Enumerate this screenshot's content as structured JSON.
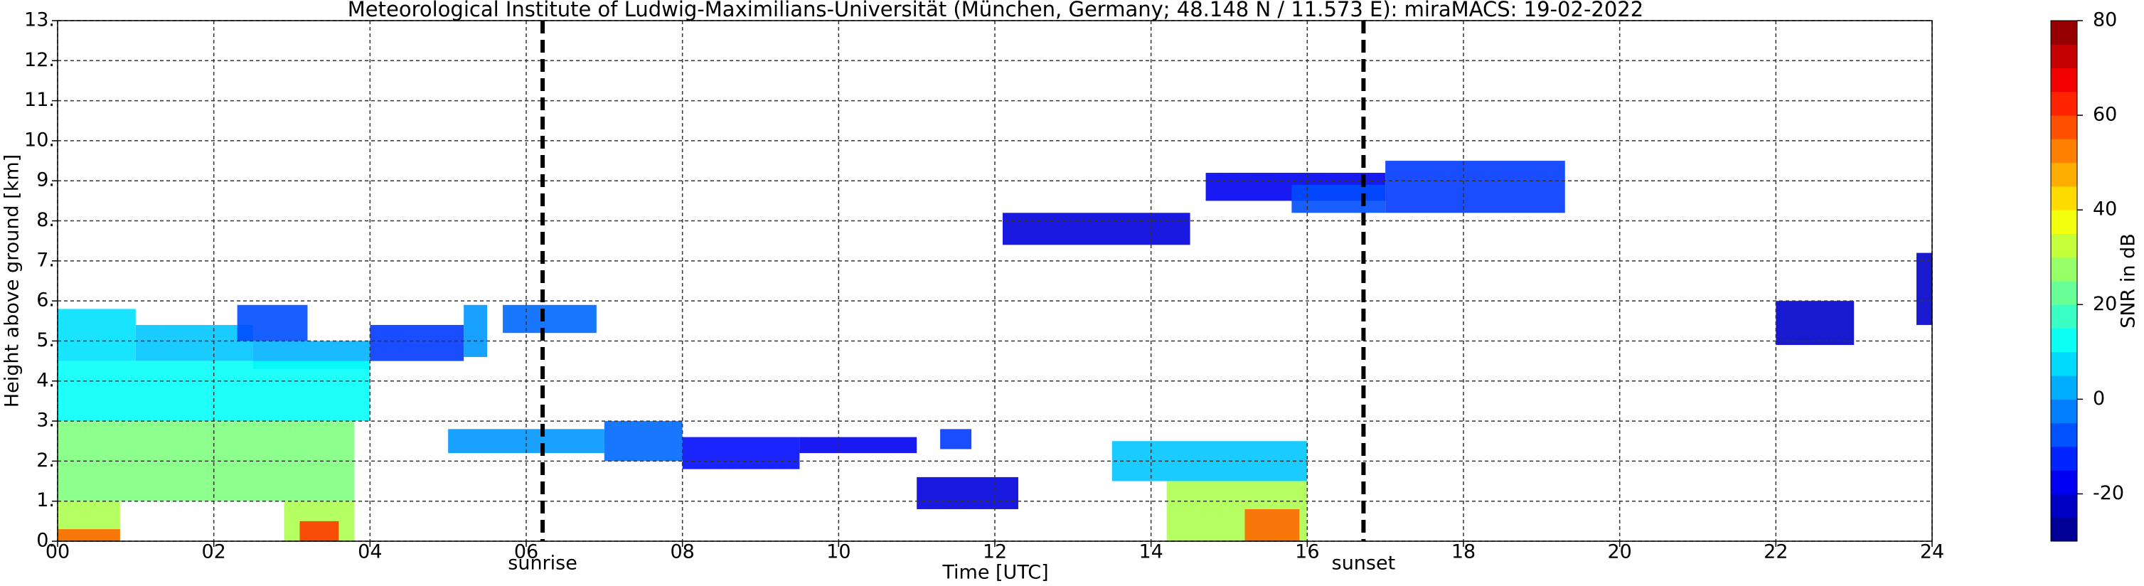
{
  "chart_data": {
    "type": "heatmap",
    "title": "Meteorological Institute of Ludwig-Maximilians-Universität (München, Germany; 48.148 N / 11.573 E):    miraMACS: 19-02-2022",
    "x_label": "Time [UTC]",
    "y_label": "Height above ground [km]",
    "colorbar_label": "SNR in dB",
    "colormap": "jet",
    "grid": true,
    "xlim": [
      0,
      24
    ],
    "xticks": [
      {
        "value": 0,
        "label": "00"
      },
      {
        "value": 2,
        "label": "02"
      },
      {
        "value": 4,
        "label": "04"
      },
      {
        "value": 6,
        "label": "06"
      },
      {
        "value": 8,
        "label": "08"
      },
      10,
      12,
      14,
      16,
      18,
      20,
      22,
      24
    ],
    "ylim": [
      0,
      13
    ],
    "yticks": [
      {
        "value": 0,
        "label": "0."
      },
      {
        "value": 1,
        "label": "1."
      },
      {
        "value": 2,
        "label": "2."
      },
      {
        "value": 3,
        "label": "3."
      },
      {
        "value": 4,
        "label": "4."
      },
      {
        "value": 5,
        "label": "5."
      },
      {
        "value": 6,
        "label": "6."
      },
      {
        "value": 7,
        "label": "7."
      },
      {
        "value": 8,
        "label": "8."
      },
      {
        "value": 9,
        "label": "9."
      },
      {
        "value": 10,
        "label": "10."
      },
      {
        "value": 11,
        "label": "11."
      },
      {
        "value": 12,
        "label": "12."
      },
      {
        "value": 13,
        "label": "13."
      }
    ],
    "clim": [
      -30,
      80
    ],
    "cticks": [
      -20,
      0,
      20,
      40,
      60,
      80
    ],
    "annotations": [
      {
        "text": "sunrise",
        "x": 6.21
      },
      {
        "text": "sunset",
        "x": 16.72
      }
    ],
    "echoes": [
      {
        "t0": 0,
        "t1": 1,
        "h0": 4.5,
        "h1": 5.8,
        "snr": 8
      },
      {
        "t0": 1,
        "t1": 2.5,
        "h0": 4.5,
        "h1": 5.4,
        "snr": 5
      },
      {
        "t0": 2.5,
        "t1": 4,
        "h0": 4.3,
        "h1": 5.0,
        "snr": 3
      },
      {
        "t0": 2.3,
        "t1": 3.2,
        "h0": 5.0,
        "h1": 5.9,
        "snr": -8
      },
      {
        "t0": 0,
        "t1": 4,
        "h0": 3.0,
        "h1": 4.5,
        "snr": 12
      },
      {
        "t0": 0,
        "t1": 3.8,
        "h0": 1.0,
        "h1": 3.0,
        "snr": 25
      },
      {
        "t0": 0,
        "t1": 0.8,
        "h0": 0,
        "h1": 1.0,
        "snr": 30
      },
      {
        "t0": 2.9,
        "t1": 3.8,
        "h0": 0,
        "h1": 1.0,
        "snr": 30
      },
      {
        "t0": 0,
        "t1": 0.8,
        "h0": 0,
        "h1": 0.3,
        "snr": 55
      },
      {
        "t0": 3.1,
        "t1": 3.6,
        "h0": 0,
        "h1": 0.5,
        "snr": 60
      },
      {
        "t0": 4,
        "t1": 5.2,
        "h0": 4.5,
        "h1": 5.4,
        "snr": -10
      },
      {
        "t0": 5.2,
        "t1": 5.5,
        "h0": 4.6,
        "h1": 5.9,
        "snr": 0
      },
      {
        "t0": 5.7,
        "t1": 6.9,
        "h0": 5.2,
        "h1": 5.9,
        "snr": -5
      },
      {
        "t0": 5,
        "t1": 7,
        "h0": 2.2,
        "h1": 2.8,
        "snr": 0
      },
      {
        "t0": 7,
        "t1": 8,
        "h0": 2.0,
        "h1": 3.0,
        "snr": -5
      },
      {
        "t0": 8,
        "t1": 9.5,
        "h0": 1.8,
        "h1": 2.6,
        "snr": -15
      },
      {
        "t0": 9.5,
        "t1": 11,
        "h0": 2.2,
        "h1": 2.6,
        "snr": -18
      },
      {
        "t0": 11.3,
        "t1": 11.7,
        "h0": 2.3,
        "h1": 2.8,
        "snr": -10
      },
      {
        "t0": 11,
        "t1": 12.3,
        "h0": 0.8,
        "h1": 1.6,
        "snr": -20
      },
      {
        "t0": 13.5,
        "t1": 16,
        "h0": 1.5,
        "h1": 2.5,
        "snr": 5
      },
      {
        "t0": 14.2,
        "t1": 16,
        "h0": 0,
        "h1": 1.5,
        "snr": 30
      },
      {
        "t0": 15.2,
        "t1": 15.9,
        "h0": 0,
        "h1": 0.8,
        "snr": 55
      },
      {
        "t0": 12.1,
        "t1": 14.5,
        "h0": 7.4,
        "h1": 8.2,
        "snr": -20
      },
      {
        "t0": 14.7,
        "t1": 17,
        "h0": 8.5,
        "h1": 9.2,
        "snr": -18
      },
      {
        "t0": 15.8,
        "t1": 17,
        "h0": 8.2,
        "h1": 8.9,
        "snr": -8
      },
      {
        "t0": 17,
        "t1": 19.3,
        "h0": 8.2,
        "h1": 9.5,
        "snr": -10
      },
      {
        "t0": 22,
        "t1": 23,
        "h0": 4.9,
        "h1": 6.0,
        "snr": -22
      },
      {
        "t0": 23.8,
        "t1": 24,
        "h0": 5.4,
        "h1": 7.2,
        "snr": -22
      }
    ]
  }
}
